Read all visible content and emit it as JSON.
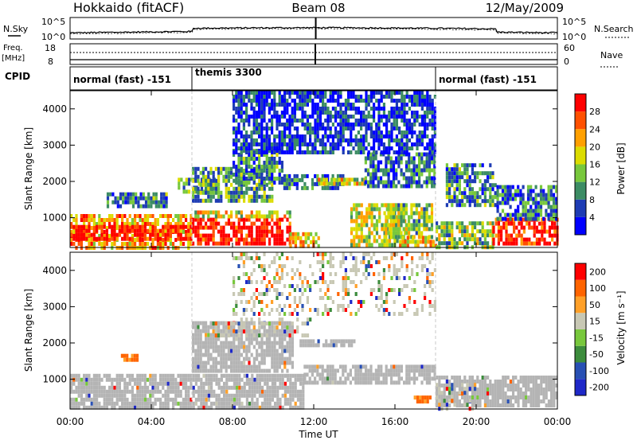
{
  "header": {
    "station": "Hokkaido (fitACF)",
    "beam": "Beam 08",
    "date": "12/May/2009"
  },
  "nsky_panel": {
    "left_label": "N.Sky",
    "right_label": "N.Search",
    "left_ticks": [
      "10^5",
      "10^0"
    ],
    "right_ticks": [
      "10^5",
      "10^0"
    ]
  },
  "freq_panel": {
    "left_label": "Freq. [MHz]",
    "right_label": "Nave",
    "left_ticks": [
      "18",
      "8"
    ],
    "right_ticks": [
      "60",
      "0"
    ]
  },
  "cpid_panel": {
    "label": "CPID",
    "modes": [
      {
        "text": "normal (fast) -151",
        "start_hour": 0,
        "end_hour": 6
      },
      {
        "text": "themis 3300",
        "start_hour": 6,
        "end_hour": 18
      },
      {
        "text": "normal (fast) -151",
        "start_hour": 18,
        "end_hour": 24
      }
    ]
  },
  "x_axis": {
    "title": "Time UT",
    "tick_labels": [
      "00:00",
      "04:00",
      "08:00",
      "12:00",
      "16:00",
      "20:00",
      "00:00"
    ]
  },
  "colors": {
    "power_scale": [
      "#0000ff",
      "#1e3cb4",
      "#3c8c64",
      "#78c83c",
      "#dcdc00",
      "#ffa000",
      "#ff5000",
      "#ff0000"
    ],
    "velocity_scale": [
      "#1e28c8",
      "#2850b4",
      "#3c8c3c",
      "#78c83c",
      "#c8c8b4",
      "#ffa028",
      "#ff6400",
      "#ff0000"
    ],
    "ground_scatter": "#b4b4b4"
  },
  "chart_data": [
    {
      "type": "heatmap",
      "panel": "power",
      "ylabel": "Slant Range [km]",
      "y_ticks": [
        "1000",
        "2000",
        "3000",
        "4000"
      ],
      "xlim_hours": [
        0,
        24
      ],
      "ylim_km": [
        180,
        4500
      ],
      "colorbar": {
        "label": "Power [dB]",
        "tick_labels": [
          "4",
          "8",
          "12",
          "16",
          "20",
          "24",
          "28"
        ]
      },
      "regions": [
        {
          "t0": 0.0,
          "t1": 6.0,
          "r0": 200,
          "r1": 1100,
          "level": 0.7
        },
        {
          "t0": 0.0,
          "t1": 6.0,
          "r0": 400,
          "r1": 800,
          "level": 0.95
        },
        {
          "t0": 6.0,
          "t1": 10.8,
          "r0": 250,
          "r1": 1000,
          "level": 0.95
        },
        {
          "t0": 6.0,
          "t1": 10.8,
          "r0": 1000,
          "r1": 1200,
          "level": 0.55
        },
        {
          "t0": 10.8,
          "t1": 12.2,
          "r0": 250,
          "r1": 600,
          "level": 0.6
        },
        {
          "t0": 13.8,
          "t1": 16.5,
          "r0": 250,
          "r1": 1400,
          "level": 0.5
        },
        {
          "t0": 15.5,
          "t1": 17.8,
          "r0": 500,
          "r1": 1400,
          "level": 0.45
        },
        {
          "t0": 16.2,
          "t1": 18.0,
          "r0": 250,
          "r1": 500,
          "level": 0.65
        },
        {
          "t0": 18.0,
          "t1": 20.8,
          "r0": 200,
          "r1": 900,
          "level": 0.45
        },
        {
          "t0": 20.8,
          "t1": 24.0,
          "r0": 300,
          "r1": 1000,
          "level": 0.9
        },
        {
          "t0": 1.8,
          "t1": 4.8,
          "r0": 1350,
          "r1": 1700,
          "level": 0.3
        },
        {
          "t0": 5.3,
          "t1": 7.2,
          "r0": 1700,
          "r1": 2100,
          "level": 0.35
        },
        {
          "t0": 6.0,
          "t1": 10.0,
          "r0": 1500,
          "r1": 2400,
          "level": 0.35
        },
        {
          "t0": 8.0,
          "t1": 10.5,
          "r0": 2000,
          "r1": 2900,
          "level": 0.3
        },
        {
          "t0": 10.5,
          "t1": 13.5,
          "r0": 1800,
          "r1": 2200,
          "level": 0.25
        },
        {
          "t0": 12.2,
          "t1": 14.5,
          "r0": 1900,
          "r1": 2100,
          "level": 0.55
        },
        {
          "t0": 14.5,
          "t1": 18.0,
          "r0": 1900,
          "r1": 2800,
          "level": 0.25
        },
        {
          "t0": 18.5,
          "t1": 21.0,
          "r0": 1400,
          "r1": 2500,
          "level": 0.3
        },
        {
          "t0": 21.0,
          "t1": 24.0,
          "r0": 1000,
          "r1": 1900,
          "level": 0.25
        },
        {
          "t0": 8.0,
          "t1": 18.0,
          "r0": 2800,
          "r1": 4500,
          "level": 0.15
        }
      ]
    },
    {
      "type": "heatmap",
      "panel": "velocity",
      "ylabel": "Slant Range [km]",
      "y_ticks": [
        "1000",
        "2000",
        "3000",
        "4000"
      ],
      "xlim_hours": [
        0,
        24
      ],
      "ylim_km": [
        180,
        4500
      ],
      "colorbar": {
        "label": "Velocity [m s⁻¹]",
        "tick_labels": [
          "200",
          "100",
          "50",
          "15",
          "-15",
          "-50",
          "-100",
          "-200"
        ]
      },
      "regions": [
        {
          "t0": 0.0,
          "t1": 11.5,
          "r0": 250,
          "r1": 1150,
          "kind": "ground"
        },
        {
          "t0": 11.5,
          "t1": 18.0,
          "r0": 900,
          "r1": 1400,
          "kind": "ground"
        },
        {
          "t0": 18.0,
          "t1": 24.0,
          "r0": 250,
          "r1": 1100,
          "kind": "ground"
        },
        {
          "t0": 6.0,
          "t1": 11.0,
          "r0": 1200,
          "r1": 2600,
          "kind": "ground"
        },
        {
          "t0": 11.3,
          "t1": 14.0,
          "r0": 1900,
          "r1": 2100,
          "kind": "ground"
        },
        {
          "t0": 16.8,
          "t1": 17.8,
          "r0": 350,
          "r1": 550,
          "kind": "neg"
        },
        {
          "t0": 2.5,
          "t1": 3.3,
          "r0": 1500,
          "r1": 1700,
          "kind": "neg"
        },
        {
          "t0": 18.0,
          "t1": 20.0,
          "r0": 200,
          "r1": 900,
          "kind": "mixed"
        },
        {
          "t0": 7.0,
          "t1": 12.0,
          "r0": 2200,
          "r1": 2700,
          "kind": "mixed"
        },
        {
          "t0": 8.0,
          "t1": 18.0,
          "r0": 2800,
          "r1": 4500,
          "kind": "mixed"
        }
      ]
    }
  ]
}
